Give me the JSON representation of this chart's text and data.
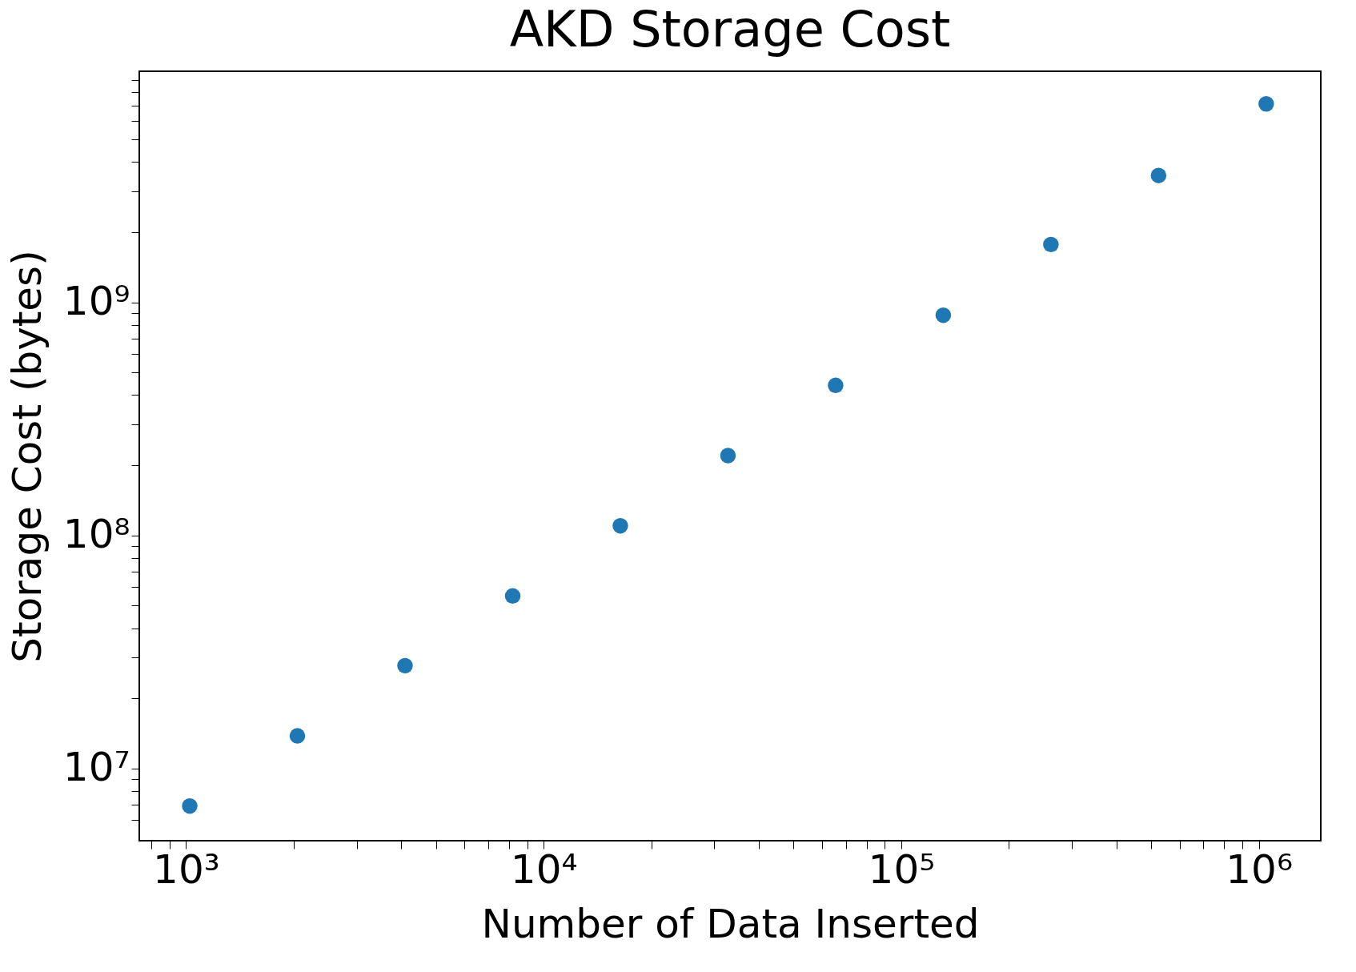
{
  "chart_data": {
    "type": "scatter",
    "title": "AKD Storage Cost",
    "xlabel": "Number of Data Inserted",
    "ylabel": "Storage Cost (bytes)",
    "x": [
      1024,
      2048,
      4096,
      8192,
      16384,
      32768,
      65536,
      131072,
      262144,
      524288,
      1048576
    ],
    "series": [
      {
        "color": "#1f77b4",
        "values": [
          6900000,
          13800000,
          27600000,
          55000000,
          110000000,
          220000000,
          440000000,
          880000000,
          1770000000,
          3500000000,
          7100000000
        ]
      }
    ],
    "log": "xy",
    "xlim": [
      740,
      1490000
    ],
    "ylim": [
      4900000,
      9800000000
    ],
    "xticks": [
      {
        "value": 1000,
        "label": "10³"
      },
      {
        "value": 10000,
        "label": "10⁴"
      },
      {
        "value": 100000,
        "label": "10⁵"
      },
      {
        "value": 1000000,
        "label": "10⁶"
      },
      {
        "value": 800,
        "label": null
      },
      {
        "value": 900,
        "label": null
      },
      {
        "value": 2000,
        "label": null
      },
      {
        "value": 3000,
        "label": null
      },
      {
        "value": 4000,
        "label": null
      },
      {
        "value": 5000,
        "label": null
      },
      {
        "value": 6000,
        "label": null
      },
      {
        "value": 7000,
        "label": null
      },
      {
        "value": 8000,
        "label": null
      },
      {
        "value": 9000,
        "label": null
      },
      {
        "value": 20000,
        "label": null
      },
      {
        "value": 30000,
        "label": null
      },
      {
        "value": 40000,
        "label": null
      },
      {
        "value": 50000,
        "label": null
      },
      {
        "value": 60000,
        "label": null
      },
      {
        "value": 70000,
        "label": null
      },
      {
        "value": 80000,
        "label": null
      },
      {
        "value": 90000,
        "label": null
      },
      {
        "value": 200000,
        "label": null
      },
      {
        "value": 300000,
        "label": null
      },
      {
        "value": 400000,
        "label": null
      },
      {
        "value": 500000,
        "label": null
      },
      {
        "value": 600000,
        "label": null
      },
      {
        "value": 700000,
        "label": null
      },
      {
        "value": 800000,
        "label": null
      },
      {
        "value": 900000,
        "label": null
      }
    ],
    "yticks": [
      {
        "value": 10000000,
        "label": "10⁷"
      },
      {
        "value": 100000000,
        "label": "10⁸"
      },
      {
        "value": 1000000000,
        "label": "10⁹"
      },
      {
        "value": 6000000,
        "label": null
      },
      {
        "value": 7000000,
        "label": null
      },
      {
        "value": 8000000,
        "label": null
      },
      {
        "value": 9000000,
        "label": null
      },
      {
        "value": 20000000,
        "label": null
      },
      {
        "value": 30000000,
        "label": null
      },
      {
        "value": 40000000,
        "label": null
      },
      {
        "value": 50000000,
        "label": null
      },
      {
        "value": 60000000,
        "label": null
      },
      {
        "value": 70000000,
        "label": null
      },
      {
        "value": 80000000,
        "label": null
      },
      {
        "value": 90000000,
        "label": null
      },
      {
        "value": 200000000,
        "label": null
      },
      {
        "value": 300000000,
        "label": null
      },
      {
        "value": 400000000,
        "label": null
      },
      {
        "value": 500000000,
        "label": null
      },
      {
        "value": 600000000,
        "label": null
      },
      {
        "value": 700000000,
        "label": null
      },
      {
        "value": 800000000,
        "label": null
      },
      {
        "value": 900000000,
        "label": null
      },
      {
        "value": 2000000000,
        "label": null
      },
      {
        "value": 3000000000,
        "label": null
      },
      {
        "value": 4000000000,
        "label": null
      },
      {
        "value": 5000000000,
        "label": null
      },
      {
        "value": 6000000000,
        "label": null
      },
      {
        "value": 7000000000,
        "label": null
      },
      {
        "value": 8000000000,
        "label": null
      },
      {
        "value": 9000000000,
        "label": null
      }
    ],
    "grid": false,
    "marker": "circle"
  }
}
